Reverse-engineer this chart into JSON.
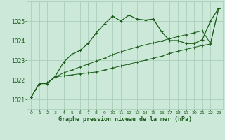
{
  "title": "Graphe pression niveau de la mer (hPa)",
  "bg_color": "#cce8d8",
  "grid_color": "#aacfba",
  "line_color": "#1a5c1a",
  "xlim": [
    -0.5,
    23.5
  ],
  "ylim": [
    1020.5,
    1026.0
  ],
  "xtick_labels": [
    "0",
    "1",
    "2",
    "3",
    "4",
    "5",
    "6",
    "7",
    "8",
    "9",
    "10",
    "11",
    "12",
    "13",
    "14",
    "15",
    "16",
    "17",
    "18",
    "19",
    "20",
    "21",
    "22",
    "23"
  ],
  "yticks": [
    1021,
    1022,
    1023,
    1024,
    1025
  ],
  "s1_x": [
    0,
    1,
    2,
    3,
    4,
    5,
    6,
    7,
    8,
    9,
    10,
    11,
    12,
    13,
    14,
    15,
    16,
    17,
    18,
    19,
    20,
    21,
    22,
    23
  ],
  "s1_y": [
    1021.1,
    1021.8,
    1021.8,
    1022.2,
    1022.9,
    1023.3,
    1023.5,
    1023.85,
    1024.4,
    1024.85,
    1025.25,
    1025.0,
    1025.3,
    1025.1,
    1025.05,
    1025.1,
    1024.45,
    1024.0,
    1024.0,
    1023.85,
    1023.85,
    1024.05,
    1025.0,
    1025.65
  ],
  "s2_x": [
    0,
    1,
    2,
    3,
    4,
    5,
    6,
    7,
    8,
    9,
    10,
    11,
    12,
    13,
    14,
    15,
    16,
    17,
    18,
    19,
    20,
    21,
    22,
    23
  ],
  "s2_y": [
    1021.1,
    1021.8,
    1021.85,
    1022.15,
    1022.2,
    1022.25,
    1022.3,
    1022.35,
    1022.4,
    1022.5,
    1022.6,
    1022.7,
    1022.8,
    1022.9,
    1023.0,
    1023.1,
    1023.2,
    1023.35,
    1023.45,
    1023.55,
    1023.65,
    1023.75,
    1023.82,
    1025.65
  ],
  "s3_x": [
    0,
    1,
    2,
    3,
    4,
    5,
    6,
    7,
    8,
    9,
    10,
    11,
    12,
    13,
    14,
    15,
    16,
    17,
    18,
    19,
    20,
    21,
    22,
    23
  ],
  "s3_y": [
    1021.1,
    1021.8,
    1021.85,
    1022.15,
    1022.35,
    1022.5,
    1022.65,
    1022.8,
    1022.95,
    1023.1,
    1023.28,
    1023.42,
    1023.55,
    1023.67,
    1023.78,
    1023.88,
    1023.98,
    1024.1,
    1024.2,
    1024.3,
    1024.4,
    1024.5,
    1023.85,
    1025.65
  ]
}
